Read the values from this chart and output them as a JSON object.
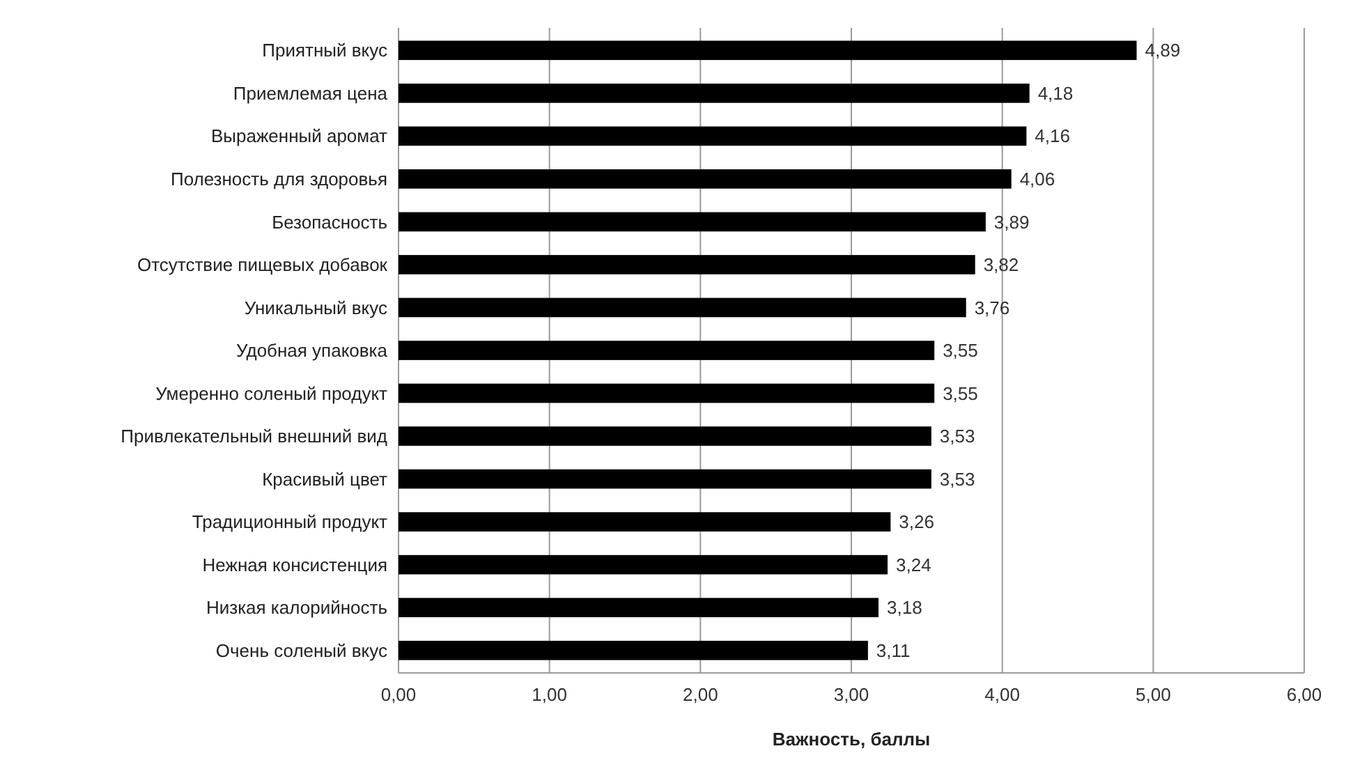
{
  "chart_data": {
    "type": "bar",
    "orientation": "horizontal",
    "xlabel": "Важность, баллы",
    "categories": [
      "Приятный вкус",
      "Приемлемая цена",
      "Выраженный аромат",
      "Полезность для здоровья",
      "Безопасность",
      "Отсутствие пищевых добавок",
      "Уникальный вкус",
      "Удобная упаковка",
      "Умеренно соленый продукт",
      "Привлекательный внешний вид",
      "Красивый цвет",
      "Традиционный продукт",
      "Нежная консистенция",
      "Низкая калорийность",
      "Очень соленый вкус"
    ],
    "values": [
      4.89,
      4.18,
      4.16,
      4.06,
      3.89,
      3.82,
      3.76,
      3.55,
      3.55,
      3.53,
      3.53,
      3.26,
      3.24,
      3.18,
      3.11
    ],
    "value_labels": [
      "4,89",
      "4,18",
      "4,16",
      "4,06",
      "3,89",
      "3,82",
      "3,76",
      "3,55",
      "3,55",
      "3,53",
      "3,53",
      "3,26",
      "3,24",
      "3,18",
      "3,11"
    ],
    "color": "#000000",
    "xlim": [
      0,
      6
    ],
    "xticks": [
      {
        "value": 0,
        "label": "0,00"
      },
      {
        "value": 1,
        "label": "1,00"
      },
      {
        "value": 2,
        "label": "2,00"
      },
      {
        "value": 3,
        "label": "3,00"
      },
      {
        "value": 4,
        "label": "4,00"
      },
      {
        "value": 5,
        "label": "5,00"
      },
      {
        "value": 6,
        "label": "6,00"
      }
    ],
    "grid": "x"
  }
}
